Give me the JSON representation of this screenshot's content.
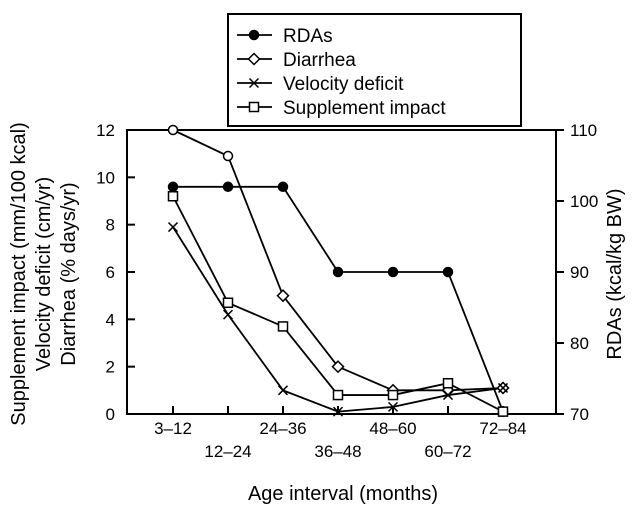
{
  "chart_data": {
    "type": "line",
    "title": "",
    "xlabel": "Age interval (months)",
    "ylabel_left": [
      "Supplement impact (mm/100 kcal)",
      "Velocity deficit (cm/yr)",
      "Diarrhea (% days/yr)"
    ],
    "ylabel_right": "RDAs (kcal/kg BW)",
    "x_categories": [
      "3–12",
      "12–24",
      "24–36",
      "36–48",
      "48–60",
      "60–72",
      "72–84"
    ],
    "ylim_left": [
      0,
      12
    ],
    "yticks_left": [
      "0",
      "2",
      "4",
      "6",
      "8",
      "10",
      "12"
    ],
    "ylim_right": [
      70,
      110
    ],
    "yticks_right": [
      "70",
      "80",
      "90",
      "100",
      "110"
    ],
    "legend_position": "top-center",
    "grid": false,
    "series": [
      {
        "name": "RDAs",
        "marker": "filled-circle",
        "axis": "left",
        "x": [
          1,
          2,
          3,
          4,
          5,
          6,
          7
        ],
        "values": [
          9.6,
          9.6,
          9.6,
          6.0,
          6.0,
          6.0,
          0.1
        ]
      },
      {
        "name": "Diarrhea",
        "marker": "open-diamond",
        "axis": "left",
        "x": [
          1,
          2,
          3,
          4,
          5,
          6,
          7
        ],
        "values": [
          12.0,
          10.9,
          5.0,
          2.0,
          1.0,
          1.0,
          1.1
        ]
      },
      {
        "name": "Velocity deficit",
        "marker": "cross",
        "axis": "left",
        "x": [
          1,
          2,
          3,
          4,
          5,
          6,
          7
        ],
        "values": [
          7.9,
          4.2,
          1.0,
          0.1,
          0.3,
          0.8,
          1.1
        ]
      },
      {
        "name": "Supplement impact",
        "marker": "open-square",
        "axis": "left",
        "x": [
          1,
          2,
          3,
          4,
          5,
          6,
          7
        ],
        "values": [
          9.2,
          4.7,
          3.7,
          0.8,
          0.8,
          1.3,
          0.1
        ]
      }
    ]
  }
}
